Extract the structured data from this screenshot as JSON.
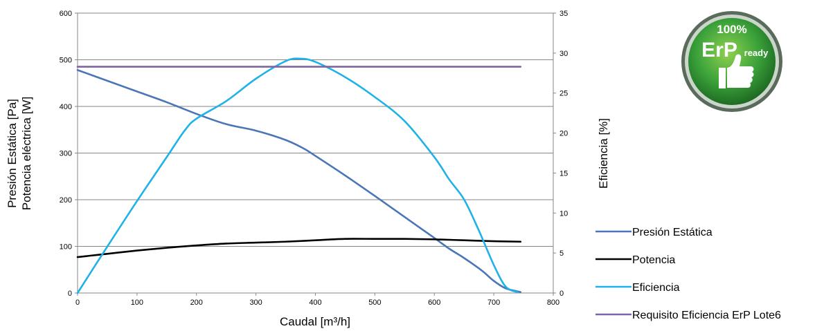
{
  "chart_data": {
    "type": "line",
    "xlabel": "Caudal [m³/h]",
    "ylabel_left": [
      "Presión Estática [Pa]",
      "Potencia eléctrica [W]"
    ],
    "ylabel_right": "Eficiencia [%]",
    "xlim": [
      0,
      800
    ],
    "ylim_left": [
      0,
      600
    ],
    "ylim_right": [
      0,
      35
    ],
    "x_ticks": [
      0,
      100,
      200,
      300,
      400,
      500,
      600,
      700,
      800
    ],
    "y_ticks_left": [
      0,
      100,
      200,
      300,
      400,
      500,
      600
    ],
    "y_ticks_right": [
      0,
      5,
      10,
      15,
      20,
      25,
      30,
      35
    ],
    "grid": true,
    "legend_position": "right",
    "series": [
      {
        "name": "Presión Estática",
        "axis": "left",
        "color": "#4a76b8",
        "points": [
          [
            0,
            478
          ],
          [
            50,
            455
          ],
          [
            100,
            432
          ],
          [
            150,
            409
          ],
          [
            200,
            384
          ],
          [
            250,
            362
          ],
          [
            300,
            348
          ],
          [
            350,
            328
          ],
          [
            380,
            310
          ],
          [
            400,
            294
          ],
          [
            450,
            252
          ],
          [
            500,
            208
          ],
          [
            550,
            163
          ],
          [
            600,
            118
          ],
          [
            625,
            95
          ],
          [
            650,
            75
          ],
          [
            680,
            48
          ],
          [
            700,
            26
          ],
          [
            720,
            10
          ],
          [
            745,
            2
          ]
        ]
      },
      {
        "name": "Potencia",
        "axis": "left",
        "color": "#000000",
        "points": [
          [
            0,
            77
          ],
          [
            50,
            84
          ],
          [
            100,
            91
          ],
          [
            150,
            97
          ],
          [
            200,
            102
          ],
          [
            250,
            106
          ],
          [
            300,
            108
          ],
          [
            350,
            110
          ],
          [
            400,
            113
          ],
          [
            450,
            116
          ],
          [
            500,
            116
          ],
          [
            550,
            116
          ],
          [
            600,
            115
          ],
          [
            650,
            113
          ],
          [
            700,
            111
          ],
          [
            745,
            110
          ]
        ]
      },
      {
        "name": "Eficiencia",
        "axis": "right",
        "color": "#1fb2e8",
        "points": [
          [
            0,
            0
          ],
          [
            50,
            5.8
          ],
          [
            100,
            11.5
          ],
          [
            150,
            17.0
          ],
          [
            180,
            20.3
          ],
          [
            200,
            21.8
          ],
          [
            250,
            24.0
          ],
          [
            300,
            26.8
          ],
          [
            350,
            29.0
          ],
          [
            375,
            29.3
          ],
          [
            400,
            28.9
          ],
          [
            450,
            27.0
          ],
          [
            500,
            24.5
          ],
          [
            550,
            21.5
          ],
          [
            600,
            17.0
          ],
          [
            625,
            14.2
          ],
          [
            650,
            11.7
          ],
          [
            675,
            7.8
          ],
          [
            700,
            3.5
          ],
          [
            720,
            0.8
          ],
          [
            740,
            0.1
          ]
        ]
      },
      {
        "name": "Requisito Eficiencia ErP Lote6",
        "axis": "right",
        "color": "#8064a2",
        "points": [
          [
            0,
            28.3
          ],
          [
            745,
            28.3
          ]
        ]
      }
    ]
  },
  "badge": {
    "top_text": "100%",
    "main_text": "ErP",
    "sub_text": "ready",
    "icon": "thumbs-up-icon"
  }
}
